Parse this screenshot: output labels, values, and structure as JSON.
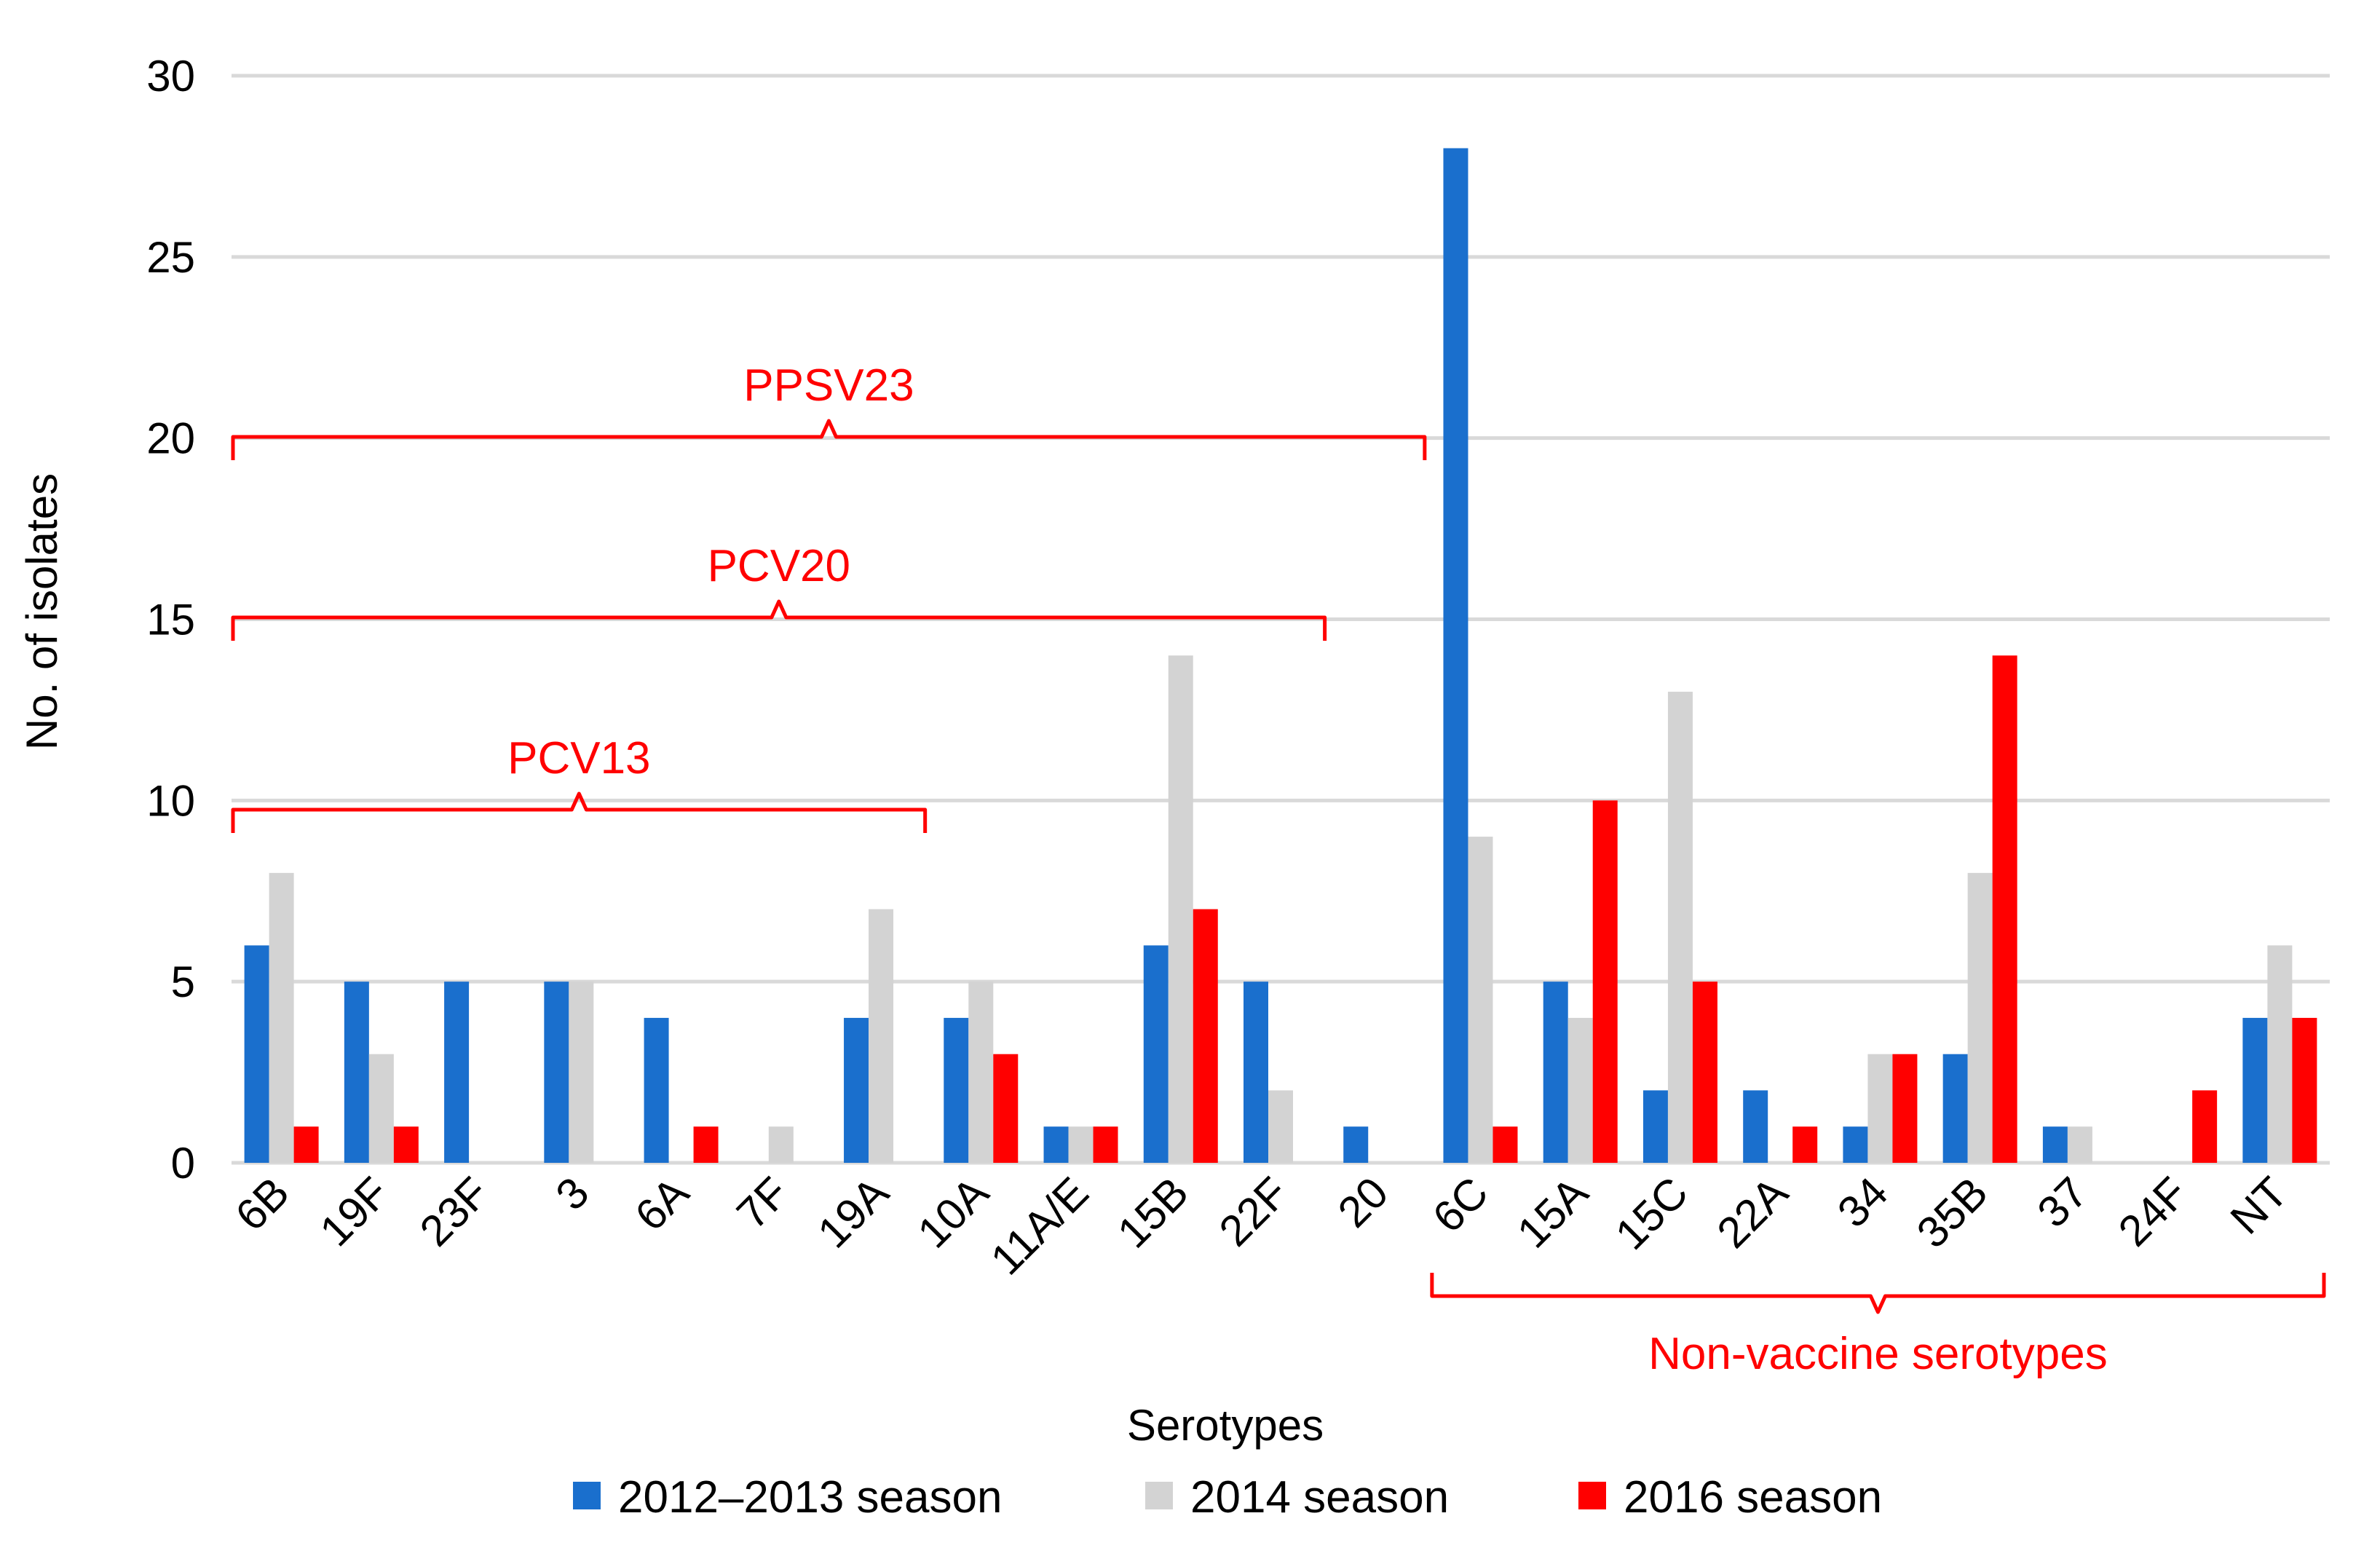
{
  "chart_data": {
    "type": "bar",
    "title": "",
    "xlabel": "Serotypes",
    "ylabel": "No. of isolates",
    "ylim": [
      0,
      30
    ],
    "yticks": [
      0,
      5,
      10,
      15,
      20,
      25,
      30
    ],
    "grid": true,
    "legend_position": "bottom",
    "categories": [
      "6B",
      "19F",
      "23F",
      "3",
      "6A",
      "7F",
      "19A",
      "10A",
      "11A/E",
      "15B",
      "22F",
      "20",
      "6C",
      "15A",
      "15C",
      "22A",
      "34",
      "35B",
      "37",
      "24F",
      "NT"
    ],
    "series": [
      {
        "name": "2012–2013 season",
        "color": "#1a6fcd",
        "values": [
          6,
          5,
          5,
          5,
          4,
          0,
          4,
          4,
          1,
          6,
          5,
          1,
          28,
          5,
          2,
          2,
          1,
          3,
          1,
          0,
          4
        ]
      },
      {
        "name": "2014 season",
        "color": "#d3d3d3",
        "values": [
          8,
          3,
          0,
          5,
          0,
          1,
          7,
          5,
          1,
          14,
          2,
          0,
          9,
          4,
          13,
          0,
          3,
          8,
          1,
          0,
          6
        ]
      },
      {
        "name": "2016 season",
        "color": "#ff0000",
        "values": [
          1,
          1,
          0,
          0,
          1,
          0,
          0,
          3,
          1,
          7,
          0,
          0,
          1,
          10,
          5,
          1,
          3,
          14,
          0,
          2,
          4
        ]
      }
    ],
    "annotations": {
      "color": "#ff0000",
      "brackets": [
        {
          "label": "PPSV23",
          "from": "6B",
          "to": "20",
          "side": "above"
        },
        {
          "label": "PCV20",
          "from": "6B",
          "to": "22F",
          "side": "above"
        },
        {
          "label": "PCV13",
          "from": "6B",
          "to": "19A",
          "side": "above"
        },
        {
          "label": "Non-vaccine serotypes",
          "from": "6C",
          "to": "NT",
          "side": "below"
        }
      ]
    }
  }
}
